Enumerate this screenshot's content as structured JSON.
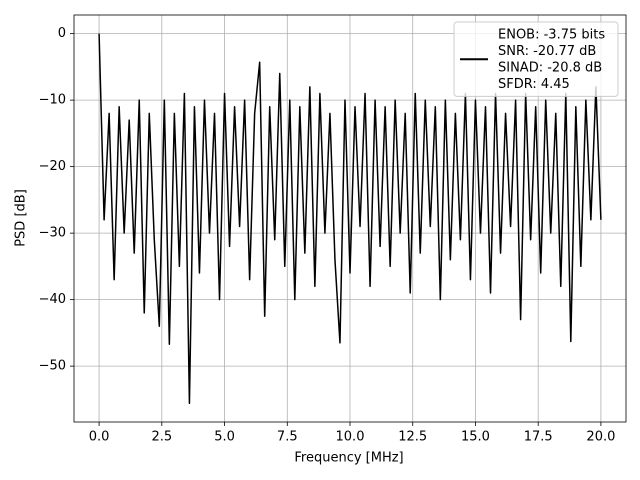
{
  "chart_data": {
    "type": "line",
    "x_label": "Frequency [MHz]",
    "y_label": "PSD [dB]",
    "xlim": [
      -1,
      21
    ],
    "ylim": [
      -58.4,
      2.8
    ],
    "xticks": [
      {
        "value": 0,
        "label": "0.0"
      },
      2.5,
      {
        "value": 5,
        "label": "5.0"
      },
      7.5,
      {
        "value": 10,
        "label": "10.0"
      },
      12.5,
      {
        "value": 15,
        "label": "15.0"
      },
      17.5,
      {
        "value": 20,
        "label": "20.0"
      }
    ],
    "yticks": [
      0,
      {
        "value": -10,
        "label": "−10"
      },
      {
        "value": -20,
        "label": "−20"
      },
      {
        "value": -30,
        "label": "−30"
      },
      {
        "value": -40,
        "label": "−40"
      },
      {
        "value": -50,
        "label": "−50"
      }
    ],
    "grid": true,
    "legend": "upper right",
    "x": [
      0,
      0.2,
      0.4,
      0.6,
      0.8,
      1,
      1.2,
      1.4,
      1.6,
      1.8,
      2,
      2.2,
      2.4,
      2.6,
      2.8,
      3,
      3.2,
      3.4,
      3.6,
      3.8,
      4,
      4.2,
      4.4,
      4.6,
      4.8,
      5,
      5.2,
      5.4,
      5.6,
      5.8,
      6,
      6.2,
      6.4,
      6.6,
      6.8,
      7,
      7.2,
      7.4,
      7.6,
      7.8,
      8,
      8.2,
      8.4,
      8.6,
      8.8,
      9,
      9.2,
      9.4,
      9.6,
      9.8,
      10,
      10.2,
      10.4,
      10.6,
      10.8,
      11,
      11.2,
      11.4,
      11.6,
      11.8,
      12,
      12.2,
      12.4,
      12.6,
      12.8,
      13,
      13.2,
      13.4,
      13.6,
      13.8,
      14,
      14.2,
      14.4,
      14.6,
      14.8,
      15,
      15.2,
      15.4,
      15.6,
      15.8,
      16,
      16.2,
      16.4,
      16.6,
      16.8,
      17,
      17.2,
      17.4,
      17.6,
      17.8,
      18,
      18.2,
      18.4,
      18.6,
      18.8,
      19,
      19.2,
      19.4,
      19.6,
      19.8,
      20
    ],
    "series": [
      {
        "name": "ENOB: -3.75 bits\nSNR: -20.77 dB\nSINAD: -20.8 dB\nSFDR: 4.45",
        "color": "#000000",
        "values": [
          0,
          -28,
          -12,
          -37,
          -11,
          -30,
          -13,
          -33,
          -10,
          -42,
          -12,
          -31,
          -44,
          -10,
          -46.7,
          -12,
          -35,
          -9,
          -55.6,
          -11,
          -36,
          -10,
          -30,
          -12,
          -40,
          -9,
          -32,
          -11,
          -29,
          -10,
          -37,
          -12,
          -4.3,
          -42.5,
          -11,
          -31,
          -6,
          -35,
          -10,
          -40,
          -11,
          -33,
          -8,
          -38,
          -9,
          -30,
          -12,
          -34,
          -46.5,
          -10,
          -36,
          -11,
          -29,
          -9,
          -38,
          -10,
          -32,
          -11,
          -35,
          -10,
          -30,
          -12,
          -39,
          -9,
          -33,
          -10,
          -29,
          -11,
          -40,
          -10,
          -34,
          -12,
          -31,
          -9,
          -37,
          -10,
          -30,
          -11,
          -39,
          -9,
          -33,
          -12,
          -29,
          -10,
          -43,
          -9,
          -31,
          -11,
          -36,
          -10,
          -30,
          -12,
          -38,
          -9,
          -46.3,
          -11,
          -35,
          -10,
          -28,
          -8,
          -28
        ]
      }
    ]
  }
}
